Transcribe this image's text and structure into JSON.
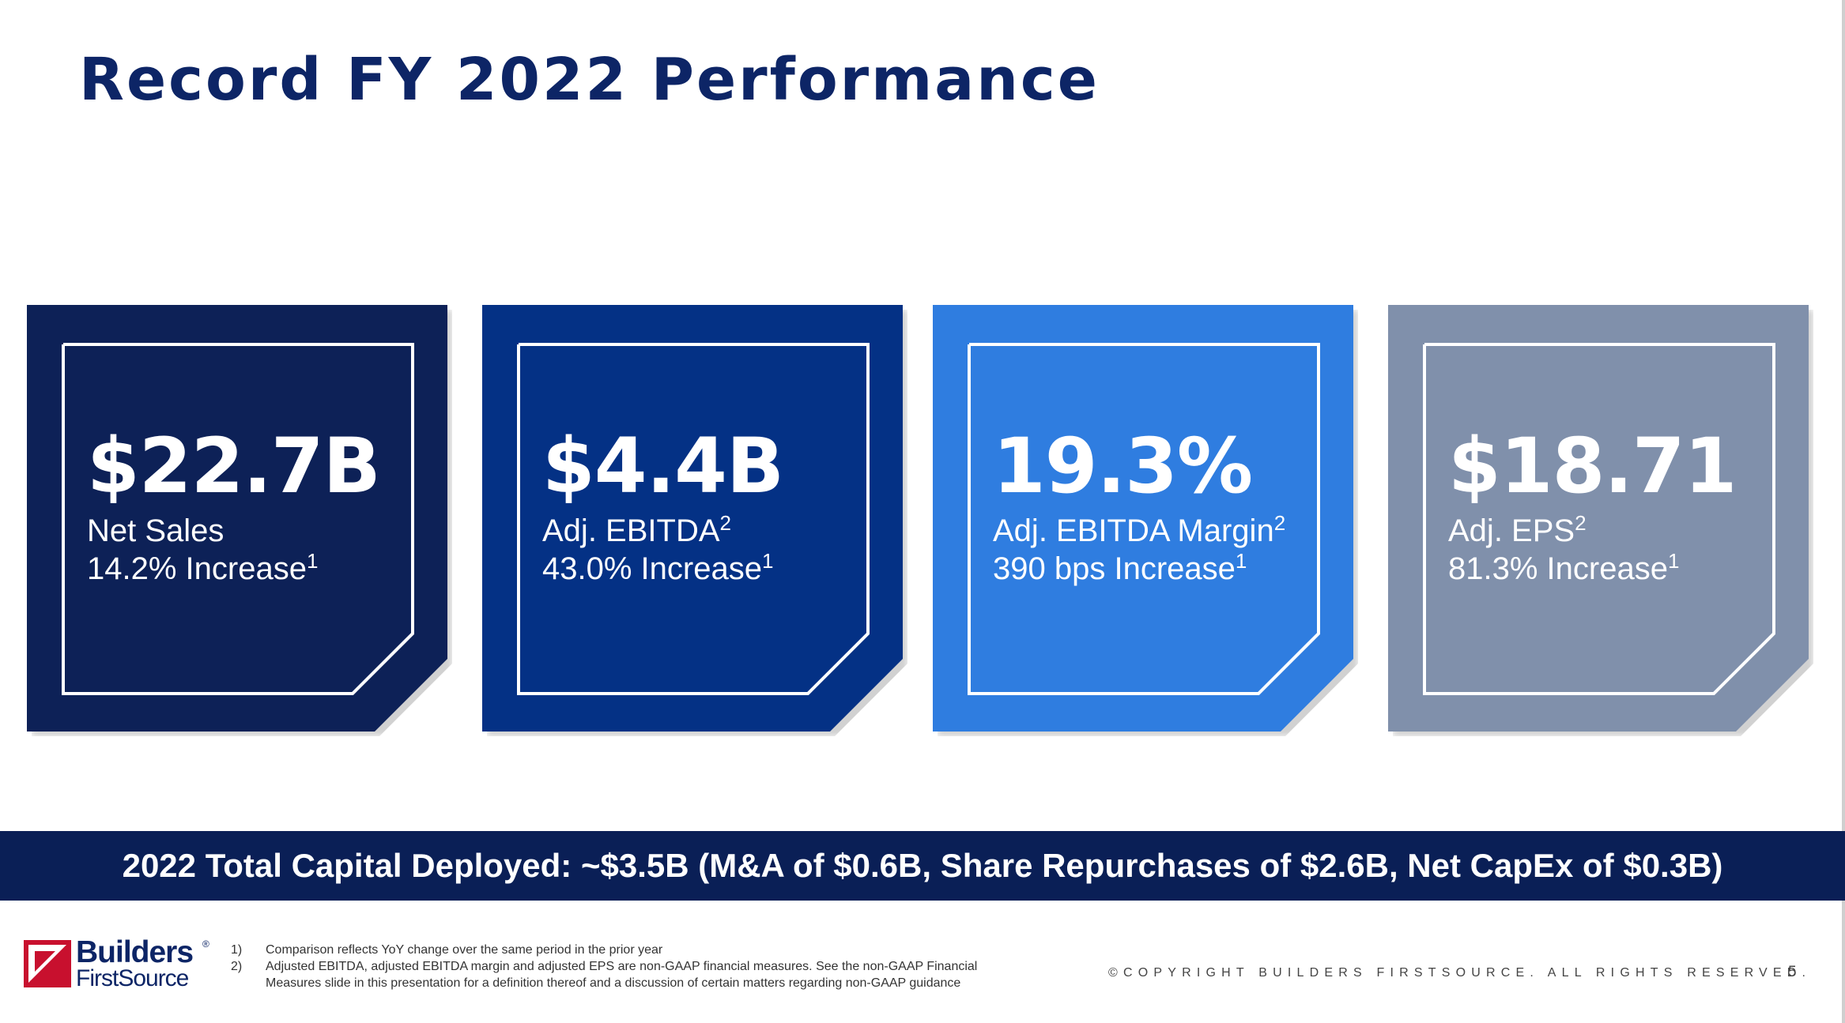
{
  "slide": {
    "title": "Record FY 2022 Performance",
    "page_number": "5"
  },
  "cards": [
    {
      "value": "$22.7B",
      "label": "Net Sales",
      "label_sup": "",
      "sub": "14.2% Increase",
      "sub_sup": "1",
      "color": "#0d2157"
    },
    {
      "value": "$4.4B",
      "label": "Adj. EBITDA",
      "label_sup": "2",
      "sub": "43.0% Increase",
      "sub_sup": "1",
      "color": "#043185"
    },
    {
      "value": "19.3%",
      "label": "Adj. EBITDA Margin",
      "label_sup": "2",
      "sub": "390 bps Increase",
      "sub_sup": "1",
      "color": "#2f7de0"
    },
    {
      "value": "$18.71",
      "label": "Adj. EPS",
      "label_sup": "2",
      "sub": "81.3% Increase",
      "sub_sup": "1",
      "color": "#8090ab"
    }
  ],
  "banner": {
    "text": "2022 Total Capital Deployed: ~$3.5B (M&A of $0.6B, Share Repurchases of $2.6B, Net CapEx of $0.3B)"
  },
  "logo": {
    "line1": "Builders",
    "line2": "FirstSource",
    "registered": "®",
    "mark_color": "#c8102e"
  },
  "footnotes": [
    {
      "num": "1)",
      "text": "Comparison reflects YoY change over the same period in the prior year"
    },
    {
      "num": "2)",
      "text": "Adjusted EBITDA, adjusted EBITDA margin and adjusted EPS are non-GAAP financial measures. See the non-GAAP Financial"
    },
    {
      "num": "",
      "text": "Measures slide in this presentation for a definition thereof and a discussion of certain matters regarding non-GAAP guidance"
    }
  ],
  "copyright": "©COPYRIGHT BUILDERS FIRSTSOURCE. ALL RIGHTS RESERVED."
}
